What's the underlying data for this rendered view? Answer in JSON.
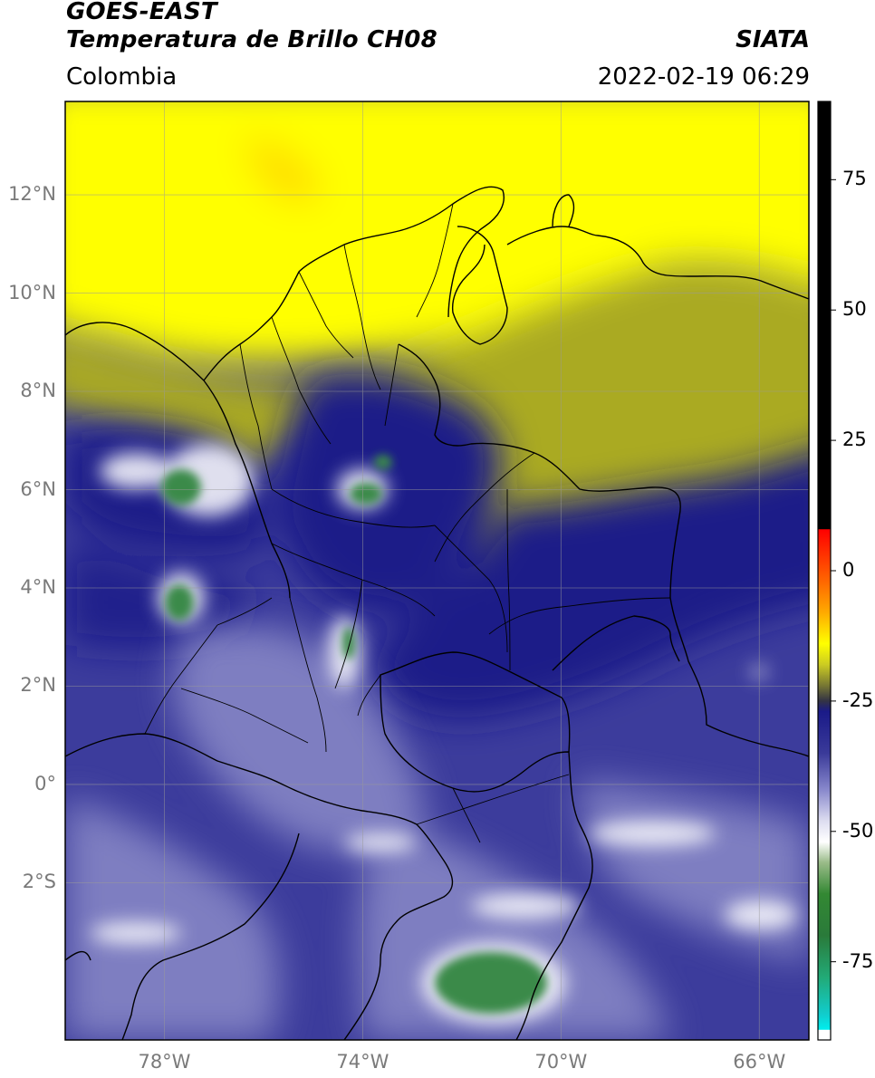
{
  "header": {
    "title_line1": "GOES-EAST",
    "title_line2": "Temperatura de Brillo CH08",
    "region": "Colombia",
    "source": "SIATA",
    "datetime": "2022-02-19 06:29"
  },
  "map": {
    "lat_labels": [
      {
        "value": 12,
        "label": "12°N"
      },
      {
        "value": 10,
        "label": "10°N"
      },
      {
        "value": 8,
        "label": "8°N"
      },
      {
        "value": 6,
        "label": "6°N"
      },
      {
        "value": 4,
        "label": "4°N"
      },
      {
        "value": 2,
        "label": "2°N"
      },
      {
        "value": 0,
        "label": "0°"
      },
      {
        "value": -2,
        "label": "2°S"
      }
    ],
    "lon_labels": [
      {
        "value": -78,
        "label": "78°W"
      },
      {
        "value": -74,
        "label": "74°W"
      },
      {
        "value": -70,
        "label": "70°W"
      },
      {
        "value": -66,
        "label": "66°W"
      }
    ],
    "lat_range": [
      -5.2,
      13.9
    ],
    "lon_range": [
      -80.0,
      -65.0
    ]
  },
  "colorbar": {
    "range": [
      -90,
      90
    ],
    "ticks": [
      {
        "value": 75,
        "label": "75"
      },
      {
        "value": 50,
        "label": "50"
      },
      {
        "value": 25,
        "label": "25"
      },
      {
        "value": 0,
        "label": "0"
      },
      {
        "value": -25,
        "label": "-25"
      },
      {
        "value": -50,
        "label": "-50"
      },
      {
        "value": -75,
        "label": "-75"
      }
    ],
    "stops": [
      {
        "value": 90,
        "color": "#000000"
      },
      {
        "value": 8,
        "color": "#000000"
      },
      {
        "value": 7.9,
        "color": "#ff0000"
      },
      {
        "value": -2,
        "color": "#ff6600"
      },
      {
        "value": -8,
        "color": "#ffaa00"
      },
      {
        "value": -14,
        "color": "#ffff00"
      },
      {
        "value": -18,
        "color": "#cccc22"
      },
      {
        "value": -22,
        "color": "#777733"
      },
      {
        "value": -25,
        "color": "#333344"
      },
      {
        "value": -27,
        "color": "#1a1a88"
      },
      {
        "value": -35,
        "color": "#3a3a99"
      },
      {
        "value": -42,
        "color": "#8888cc"
      },
      {
        "value": -48,
        "color": "#ddddf0"
      },
      {
        "value": -52,
        "color": "#ffffff"
      },
      {
        "value": -56,
        "color": "#99bb88"
      },
      {
        "value": -62,
        "color": "#338833"
      },
      {
        "value": -70,
        "color": "#2a7a3a"
      },
      {
        "value": -78,
        "color": "#22aa77"
      },
      {
        "value": -85,
        "color": "#11cccc"
      },
      {
        "value": -88,
        "color": "#00eeee"
      },
      {
        "value": -88.1,
        "color": "#ffffff"
      },
      {
        "value": -90,
        "color": "#ffffff"
      }
    ]
  },
  "colors": {
    "warm_yellow": "#ffff00",
    "olive": "#aaaa22",
    "navy": "#1a1a88",
    "blue": "#3c3c9c",
    "lavender": "#8a8ac8",
    "white": "#f4f4fa",
    "green": "#3a8a4a",
    "orange": "#ffcc00"
  }
}
